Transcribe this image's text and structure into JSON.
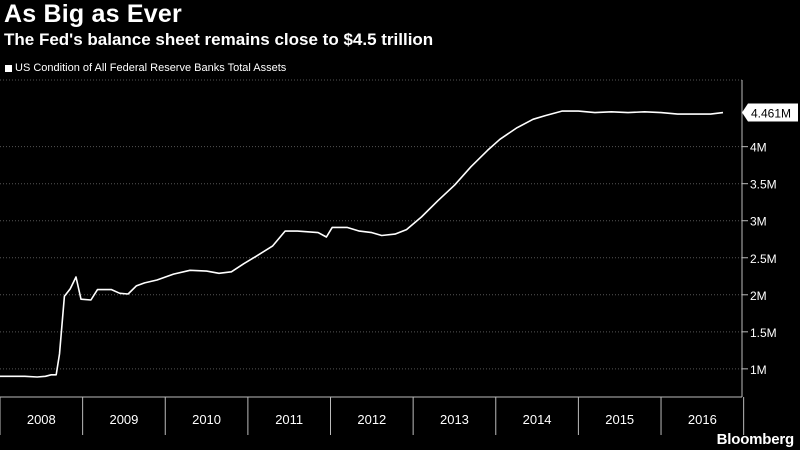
{
  "chart_data": {
    "type": "line",
    "title": "As Big as Ever",
    "subtitle": "The Fed's balance sheet remains close to $4.5 trillion",
    "source": "Bloomberg",
    "series": [
      {
        "name": "US Condition of All Federal Reserve Banks Total Assets",
        "color": "#ffffff",
        "points": [
          [
            2008.0,
            0.9
          ],
          [
            2008.3,
            0.9
          ],
          [
            2008.45,
            0.89
          ],
          [
            2008.55,
            0.9
          ],
          [
            2008.62,
            0.92
          ],
          [
            2008.68,
            0.92
          ],
          [
            2008.72,
            1.2
          ],
          [
            2008.78,
            1.98
          ],
          [
            2008.85,
            2.08
          ],
          [
            2008.92,
            2.24
          ],
          [
            2008.98,
            1.94
          ],
          [
            2009.1,
            1.93
          ],
          [
            2009.18,
            2.07
          ],
          [
            2009.35,
            2.07
          ],
          [
            2009.45,
            2.02
          ],
          [
            2009.55,
            2.01
          ],
          [
            2009.65,
            2.12
          ],
          [
            2009.75,
            2.16
          ],
          [
            2009.9,
            2.2
          ],
          [
            2010.1,
            2.28
          ],
          [
            2010.3,
            2.33
          ],
          [
            2010.5,
            2.32
          ],
          [
            2010.65,
            2.29
          ],
          [
            2010.8,
            2.31
          ],
          [
            2010.95,
            2.42
          ],
          [
            2011.1,
            2.52
          ],
          [
            2011.3,
            2.66
          ],
          [
            2011.45,
            2.86
          ],
          [
            2011.6,
            2.86
          ],
          [
            2011.85,
            2.84
          ],
          [
            2011.95,
            2.78
          ],
          [
            2012.02,
            2.91
          ],
          [
            2012.2,
            2.91
          ],
          [
            2012.35,
            2.86
          ],
          [
            2012.5,
            2.84
          ],
          [
            2012.62,
            2.8
          ],
          [
            2012.78,
            2.82
          ],
          [
            2012.92,
            2.88
          ],
          [
            2013.1,
            3.05
          ],
          [
            2013.3,
            3.27
          ],
          [
            2013.5,
            3.48
          ],
          [
            2013.7,
            3.73
          ],
          [
            2013.9,
            3.95
          ],
          [
            2014.05,
            4.1
          ],
          [
            2014.25,
            4.25
          ],
          [
            2014.45,
            4.37
          ],
          [
            2014.6,
            4.42
          ],
          [
            2014.8,
            4.48
          ],
          [
            2015.0,
            4.48
          ],
          [
            2015.2,
            4.46
          ],
          [
            2015.4,
            4.47
          ],
          [
            2015.6,
            4.46
          ],
          [
            2015.8,
            4.47
          ],
          [
            2016.0,
            4.46
          ],
          [
            2016.2,
            4.44
          ],
          [
            2016.4,
            4.44
          ],
          [
            2016.6,
            4.44
          ],
          [
            2016.75,
            4.46
          ]
        ]
      }
    ],
    "y_unit": "trillion",
    "y_ticks": [
      1,
      1.5,
      2,
      2.5,
      3,
      3.5,
      4
    ],
    "y_tick_labels": [
      "1M",
      "1.5M",
      "2M",
      "2.5M",
      "3M",
      "3.5M",
      "4M"
    ],
    "ylim": [
      0.62,
      4.9
    ],
    "xlim": [
      2008.0,
      2016.98
    ],
    "x_categories": [
      "2008",
      "2009",
      "2010",
      "2011",
      "2012",
      "2013",
      "2014",
      "2015",
      "2016"
    ],
    "last_value_label": "4.461M",
    "last_value": 4.461,
    "grid": "horizontal dotted",
    "legend_position": "top-left",
    "background": "#000000",
    "line_color": "#ffffff",
    "grid_color": "#555555"
  }
}
